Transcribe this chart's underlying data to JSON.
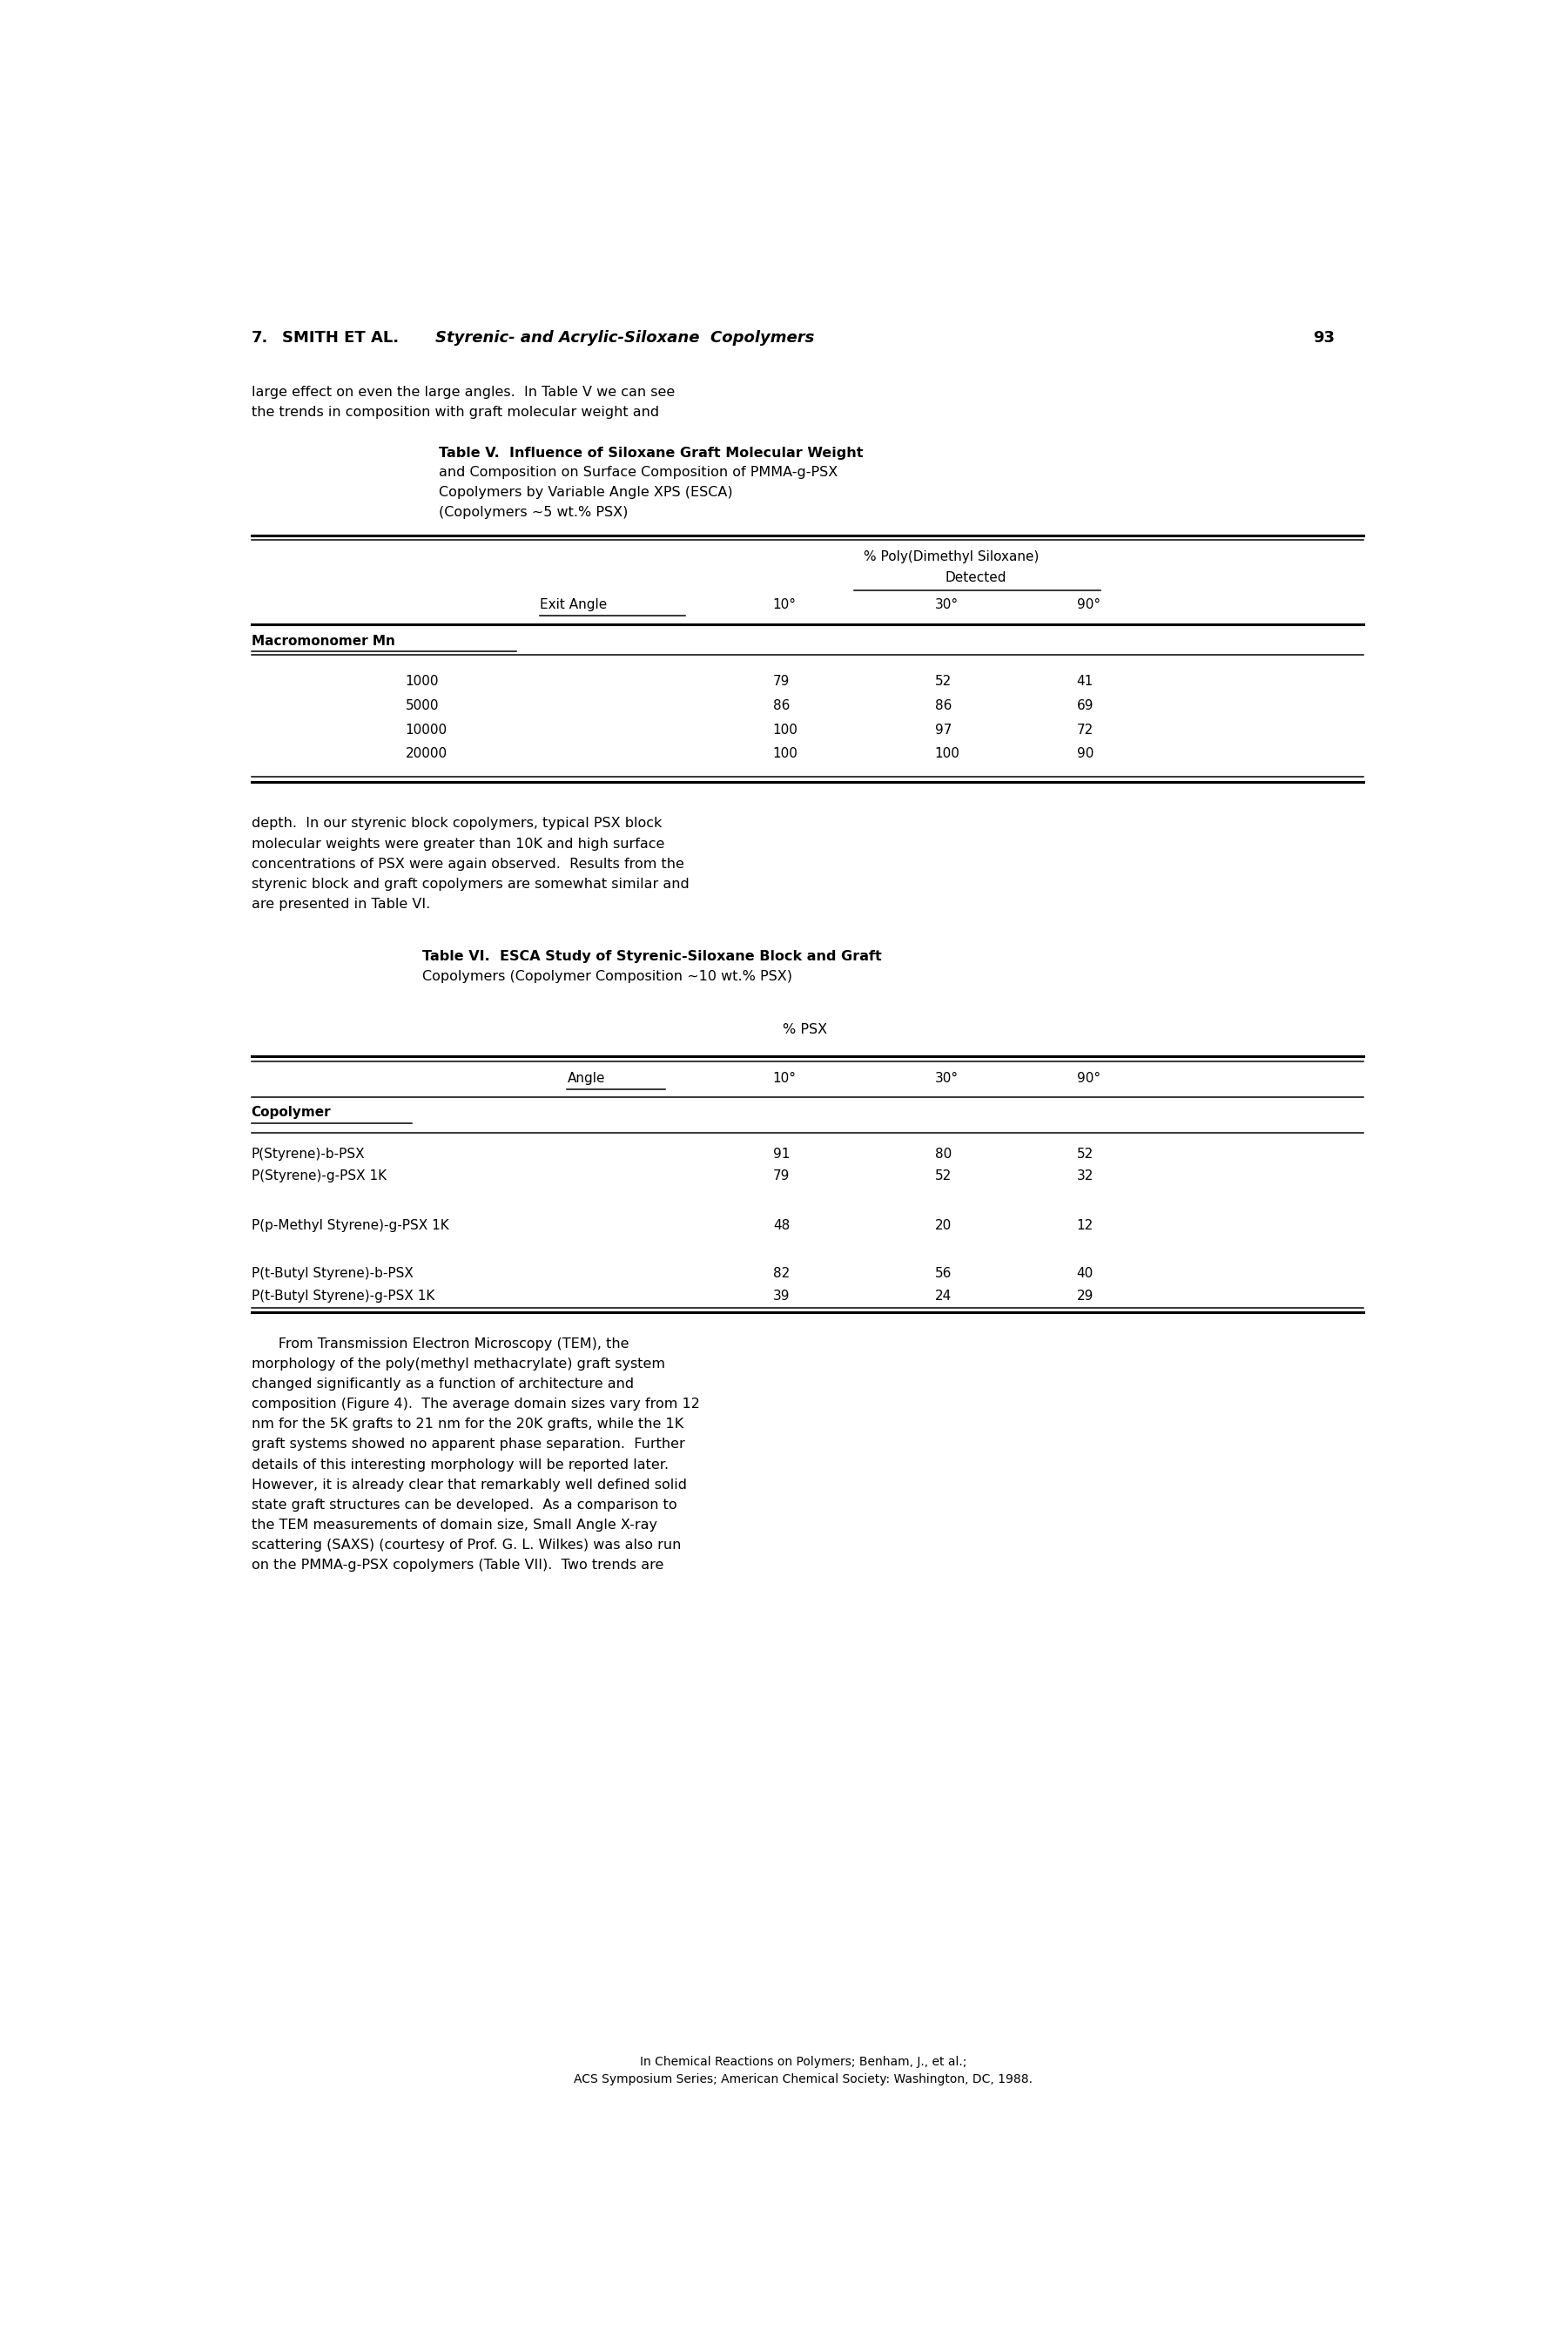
{
  "page_width": 18.01,
  "page_height": 27.0,
  "bg_color": "#ffffff",
  "para1_lines": [
    "large effect on even the large angles.  In Table V we can see",
    "the trends in composition with graft molecular weight and"
  ],
  "table5_title_lines": [
    "Table V.  Influence of Siloxane Graft Molecular Weight",
    "and Composition on Surface Composition of PMMA-g-PSX",
    "Copolymers by Variable Angle XPS (ESCA)",
    "(Copolymers ~5 wt.% PSX)"
  ],
  "table5_col_header1": "% Poly(Dimethyl Siloxane)",
  "table5_col_header2": "Detected",
  "table5_col_angle": "Exit Angle",
  "table5_angles": [
    "10°",
    "30°",
    "90°"
  ],
  "table5_row_label": "Macromonomer Mn",
  "table5_rows": [
    {
      "mn": "1000",
      "v10": "79",
      "v30": "52",
      "v90": "41"
    },
    {
      "mn": "5000",
      "v10": "86",
      "v30": "86",
      "v90": "69"
    },
    {
      "mn": "10000",
      "v10": "100",
      "v30": "97",
      "v90": "72"
    },
    {
      "mn": "20000",
      "v10": "100",
      "v30": "100",
      "v90": "90"
    }
  ],
  "para2_lines": [
    "depth.  In our styrenic block copolymers, typical PSX block",
    "molecular weights were greater than 10K and high surface",
    "concentrations of PSX were again observed.  Results from the",
    "styrenic block and graft copolymers are somewhat similar and",
    "are presented in Table VI."
  ],
  "table6_title_lines": [
    "Table VI.  ESCA Study of Styrenic-Siloxane Block and Graft",
    "Copolymers (Copolymer Composition ~10 wt.% PSX)"
  ],
  "table6_psx_header": "% PSX",
  "table6_col_angle": "Angle",
  "table6_angles": [
    "10°",
    "30°",
    "90°"
  ],
  "table6_row_label": "Copolymer",
  "table6_rows": [
    {
      "copolymer": "P(Styrene)-b-PSX",
      "v10": "91",
      "v30": "80",
      "v90": "52"
    },
    {
      "copolymer": "P(Styrene)-g-PSX 1K",
      "v10": "79",
      "v30": "52",
      "v90": "32"
    },
    {
      "copolymer": "",
      "v10": "",
      "v30": "",
      "v90": ""
    },
    {
      "copolymer": "P(p-Methyl Styrene)-g-PSX 1K",
      "v10": "48",
      "v30": "20",
      "v90": "12"
    },
    {
      "copolymer": "",
      "v10": "",
      "v30": "",
      "v90": ""
    },
    {
      "copolymer": "P(t-Butyl Styrene)-b-PSX",
      "v10": "82",
      "v30": "56",
      "v90": "40"
    },
    {
      "copolymer": "P(t-Butyl Styrene)-g-PSX 1K",
      "v10": "39",
      "v30": "24",
      "v90": "29"
    }
  ],
  "para3_lines": [
    "      From Transmission Electron Microscopy (TEM), the",
    "morphology of the poly(methyl methacrylate) graft system",
    "changed significantly as a function of architecture and",
    "composition (Figure 4).  The average domain sizes vary from 12",
    "nm for the 5K grafts to 21 nm for the 20K grafts, while the 1K",
    "graft systems showed no apparent phase separation.  Further",
    "details of this interesting morphology will be reported later.",
    "However, it is already clear that remarkably well defined solid",
    "state graft structures can be developed.  As a comparison to",
    "the TEM measurements of domain size, Small Angle X-ray",
    "scattering (SAXS) (courtesy of Prof. G. L. Wilkes) was also run",
    "on the PMMA-g-PSX copolymers (Table VII).  Two trends are"
  ],
  "footer_line1": "In Chemical Reactions on Polymers; Benham, J., et al.;",
  "footer_line2": "ACS Symposium Series; American Chemical Society: Washington, DC, 1988."
}
